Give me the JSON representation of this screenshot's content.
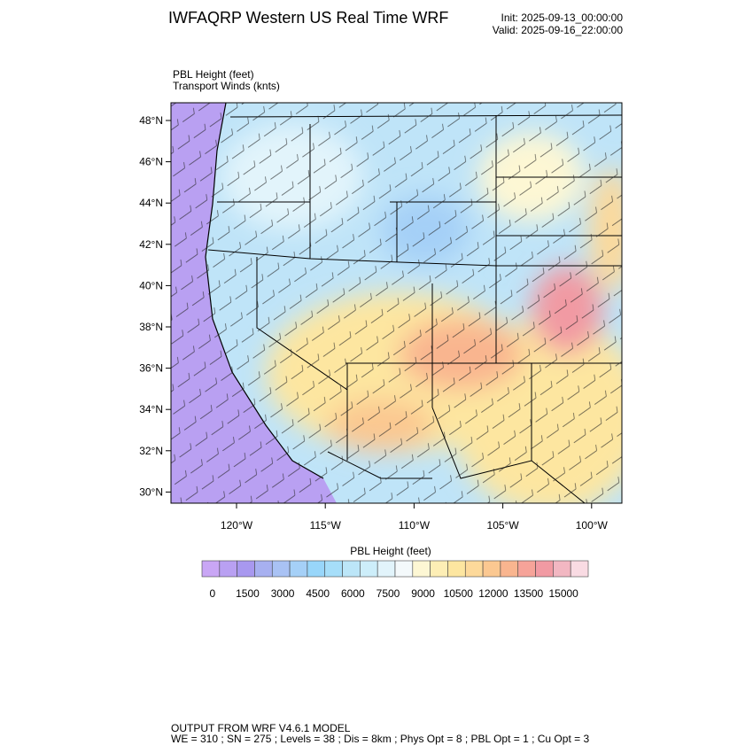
{
  "header": {
    "title": "IWFAQRP Western US Real Time WRF",
    "init": "Init: 2025-09-13_00:00:00",
    "valid": "Valid: 2025-09-16_22:00:00"
  },
  "map": {
    "field_label": "PBL Height   (feet)",
    "wind_label": "Transport Winds   (knts)",
    "lat_ticks": [
      "48°N",
      "46°N",
      "44°N",
      "42°N",
      "40°N",
      "38°N",
      "36°N",
      "34°N",
      "32°N",
      "30°N"
    ],
    "lon_ticks": [
      "120°W",
      "115°W",
      "110°W",
      "105°W",
      "100°W"
    ]
  },
  "colorbar": {
    "title": "PBL Height  (feet)",
    "labels": [
      "0",
      "1500",
      "3000",
      "4500",
      "6000",
      "7500",
      "9000",
      "10500",
      "12000",
      "13500",
      "15000"
    ],
    "colors": [
      "#c9a6f5",
      "#b9a0f2",
      "#a898ef",
      "#a7b0f0",
      "#a9c2f4",
      "#a5d0f7",
      "#98d6fa",
      "#a6def9",
      "#bce6f8",
      "#cdeefa",
      "#e2f4fb",
      "#f4f9fb",
      "#fdf7d4",
      "#fdeeb5",
      "#fde6a0",
      "#fdd99a",
      "#fbc891",
      "#f9b58f",
      "#f6a399",
      "#f19aa3",
      "#f2b7c2",
      "#f9dbe3"
    ]
  },
  "footer": {
    "line1": "OUTPUT FROM WRF V4.6.1 MODEL",
    "line2": "WE = 310 ; SN = 275 ; Levels = 38 ; Dis = 8km ; Phys Opt = 8 ; PBL Opt = 1 ; Cu Opt = 3"
  }
}
